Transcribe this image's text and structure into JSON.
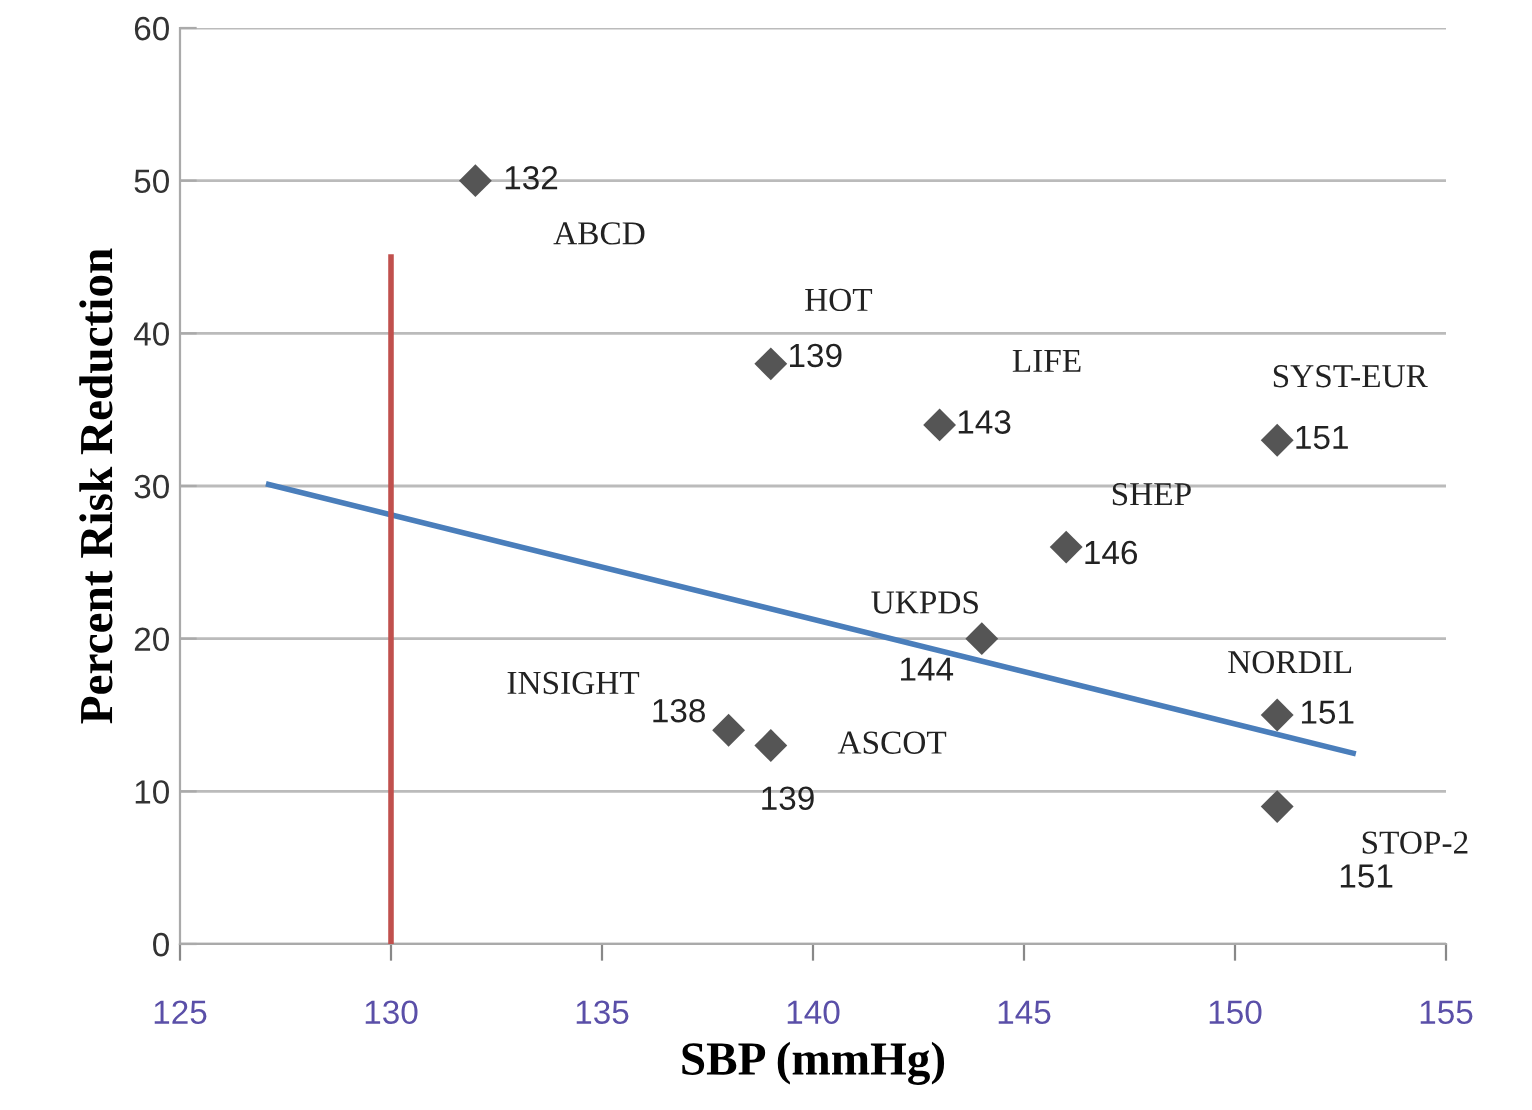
{
  "chart_data": {
    "type": "scatter",
    "xlabel": "SBP (mmHg)",
    "ylabel": "Percent Risk Reduction",
    "xlim": [
      125,
      155
    ],
    "xticks": [
      125,
      130,
      135,
      140,
      145,
      150,
      155
    ],
    "ylim": [
      0,
      60
    ],
    "yticks": [
      0,
      10,
      20,
      30,
      40,
      50,
      60
    ],
    "grid": "y",
    "series": [
      {
        "color": "#555555",
        "marker": "diamond",
        "x": [
          132,
          139,
          143,
          151,
          146,
          144,
          138,
          139,
          151,
          151
        ],
        "values": [
          50,
          38,
          34,
          33,
          26,
          20,
          14,
          13,
          15,
          9
        ]
      },
      {
        "type": "line",
        "color": "#4a7ebb",
        "marker": "none",
        "x": [
          127.1,
          152.8
        ],
        "values": [
          30.1,
          12.5
        ]
      },
      {
        "type": "line",
        "color": "#c0504d",
        "marker": "none",
        "x": [
          130,
          130
        ],
        "values": [
          0,
          45
        ]
      }
    ],
    "annotations": [
      {
        "text": "ABCD",
        "x": 132,
        "y": 50
      },
      {
        "text": "HOT",
        "x": 139,
        "y": 38
      },
      {
        "text": "LIFE",
        "x": 143,
        "y": 34
      },
      {
        "text": "SYST-EUR",
        "x": 151,
        "y": 33
      },
      {
        "text": "SHEP",
        "x": 146,
        "y": 26
      },
      {
        "text": "UKPDS",
        "x": 144,
        "y": 20
      },
      {
        "text": "INSIGHT",
        "x": 138,
        "y": 14
      },
      {
        "text": "ASCOT",
        "x": 139,
        "y": 13
      },
      {
        "text": "NORDIL",
        "x": 151,
        "y": 15
      },
      {
        "text": "STOP-2",
        "x": 151,
        "y": 9
      },
      {
        "text": "132",
        "x": 132,
        "y": 50
      },
      {
        "text": "139",
        "x": 139,
        "y": 38
      },
      {
        "text": "143",
        "x": 143,
        "y": 34
      },
      {
        "text": "151",
        "x": 151,
        "y": 33
      },
      {
        "text": "146",
        "x": 146,
        "y": 26
      },
      {
        "text": "144",
        "x": 144,
        "y": 20
      },
      {
        "text": "138",
        "x": 138,
        "y": 14
      },
      {
        "text": "139",
        "x": 139,
        "y": 13
      },
      {
        "text": "151",
        "x": 151,
        "y": 15
      },
      {
        "text": "151",
        "x": 151,
        "y": 9
      }
    ]
  }
}
